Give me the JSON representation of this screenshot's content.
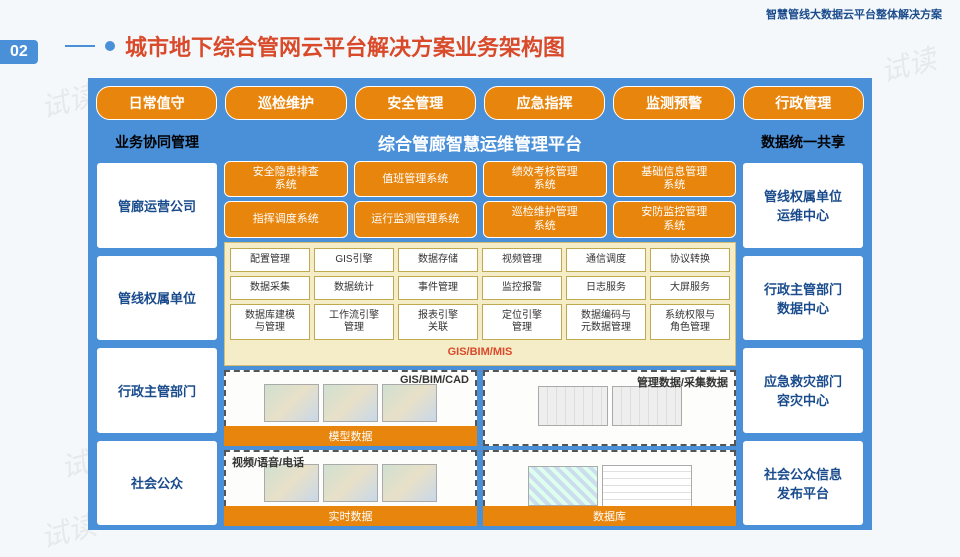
{
  "header": {
    "right_text": "智慧管线大数据云平台整体解决方案",
    "slide_number": "02",
    "title": "城市地下综合管网云平台解决方案业务架构图"
  },
  "colors": {
    "blue": "#4a90d9",
    "orange": "#e8850c",
    "title_red": "#d94a2a",
    "yellow_bg": "#f5ecc8",
    "dark_blue_text": "#1a4b8c"
  },
  "watermark": "试读",
  "top_tabs": [
    "日常值守",
    "巡检维护",
    "安全管理",
    "应急指挥",
    "监测预警",
    "行政管理"
  ],
  "left_col": {
    "header": "业务协同管理",
    "items": [
      "管廊运营公司",
      "管线权属单位",
      "行政主管部门",
      "社会公众"
    ]
  },
  "right_col": {
    "header": "数据统一共享",
    "items": [
      "管线权属单位\n运维中心",
      "行政主管部门\n数据中心",
      "应急救灾部门\n容灾中心",
      "社会公众信息\n发布平台"
    ]
  },
  "center": {
    "title": "综合管廊智慧运维管理平台",
    "orange_rows": [
      [
        "安全隐患排查\n系统",
        "值班管理系统",
        "绩效考核管理\n系统",
        "基础信息管理\n系统"
      ],
      [
        "指挥调度系统",
        "运行监测管理系统",
        "巡检维护管理\n系统",
        "安防监控管理\n系统"
      ]
    ],
    "yellow_rows": [
      [
        "配置管理",
        "GIS引擎",
        "数据存储",
        "视频管理",
        "通信调度",
        "协议转换"
      ],
      [
        "数据采集",
        "数据统计",
        "事件管理",
        "监控报警",
        "日志服务",
        "大屏服务"
      ],
      [
        "数据库建模\n与管理",
        "工作流引擎\n管理",
        "报表引擎\n关联",
        "定位引擎\n管理",
        "数据编码与\n元数据管理",
        "系统权限与\n角色管理"
      ]
    ],
    "gis_label": "GIS/BIM/MIS",
    "data_boxes": {
      "top_left": {
        "title": "GIS/BIM/CAD",
        "footer": "模型数据"
      },
      "bottom_left": {
        "title": "视频/语音/电话",
        "footer": "实时数据"
      },
      "top_right": {
        "title": "管理数据/采集数据",
        "footer": ""
      },
      "bottom_right": {
        "title": "",
        "footer": "数据库"
      }
    }
  }
}
